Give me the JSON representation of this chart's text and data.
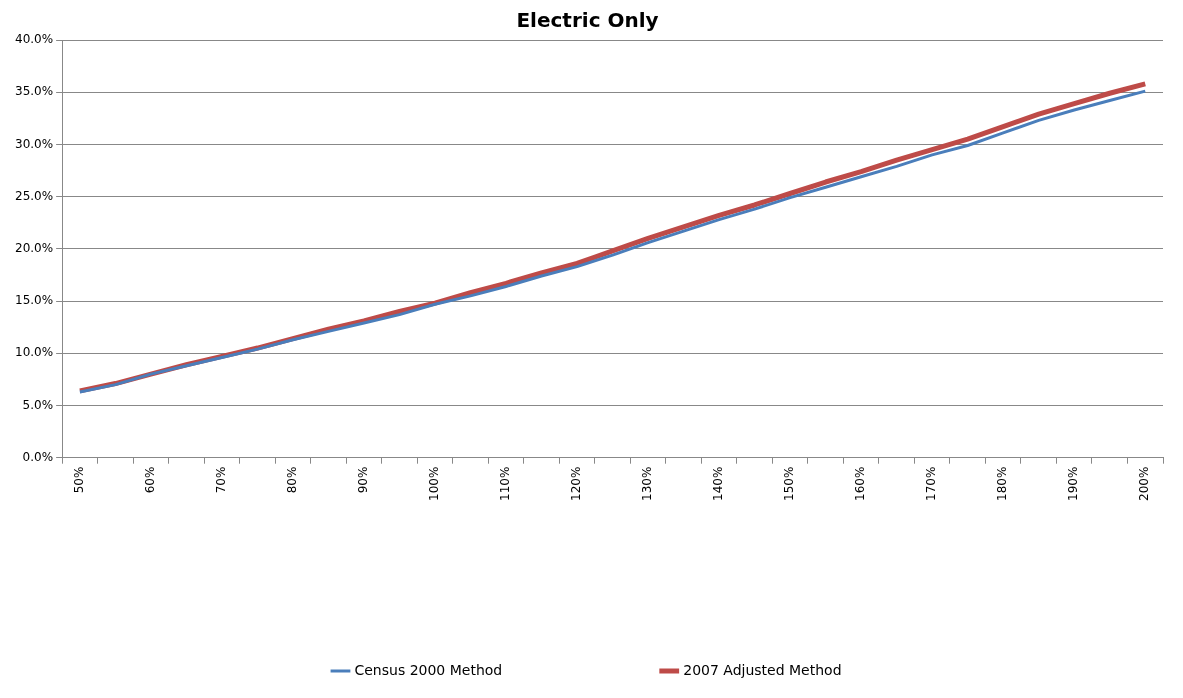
{
  "chart_data": {
    "type": "line",
    "title": "Electric Only",
    "categories": [
      "50%",
      null,
      "60%",
      null,
      "70%",
      null,
      "80%",
      null,
      "90%",
      null,
      "100%",
      null,
      "110%",
      null,
      "120%",
      null,
      "130%",
      null,
      "140%",
      null,
      "150%",
      null,
      "160%",
      null,
      "170%",
      null,
      "180%",
      null,
      "190%",
      null,
      "200%"
    ],
    "series": [
      {
        "name": "Census 2000 Method",
        "color": "#4a7ebb",
        "values": [
          6.3,
          7.0,
          8.0,
          8.8,
          9.6,
          10.4,
          11.3,
          12.1,
          12.9,
          13.7,
          14.7,
          15.5,
          16.4,
          17.4,
          18.3,
          19.4,
          20.6,
          21.7,
          22.8,
          23.8,
          24.9,
          25.9,
          26.9,
          27.9,
          29.0,
          29.9,
          31.1,
          32.3,
          33.3,
          34.2,
          35.1
        ]
      },
      {
        "name": "2007 Adjusted Method",
        "color": "#be4b48",
        "values": [
          6.4,
          7.1,
          8.0,
          8.9,
          9.7,
          10.5,
          11.4,
          12.3,
          13.1,
          14.0,
          14.8,
          15.8,
          16.7,
          17.7,
          18.6,
          19.8,
          21.0,
          22.1,
          23.2,
          24.2,
          25.3,
          26.4,
          27.4,
          28.5,
          29.5,
          30.5,
          31.7,
          32.9,
          33.9,
          34.9,
          35.8
        ]
      }
    ],
    "ylim": [
      0,
      40
    ],
    "yticks": [
      {
        "value": 0,
        "label": "0.0%"
      },
      {
        "value": 5,
        "label": "5.0%"
      },
      {
        "value": 10,
        "label": "10.0%"
      },
      {
        "value": 15,
        "label": "15.0%"
      },
      {
        "value": 20,
        "label": "20.0%"
      },
      {
        "value": 25,
        "label": "25.0%"
      },
      {
        "value": 30,
        "label": "30.0%"
      },
      {
        "value": 35,
        "label": "35.0%"
      },
      {
        "value": 40,
        "label": "40.0%"
      }
    ],
    "grid": "y",
    "legend": "bottom",
    "marker": "none",
    "line_style": "solid"
  }
}
